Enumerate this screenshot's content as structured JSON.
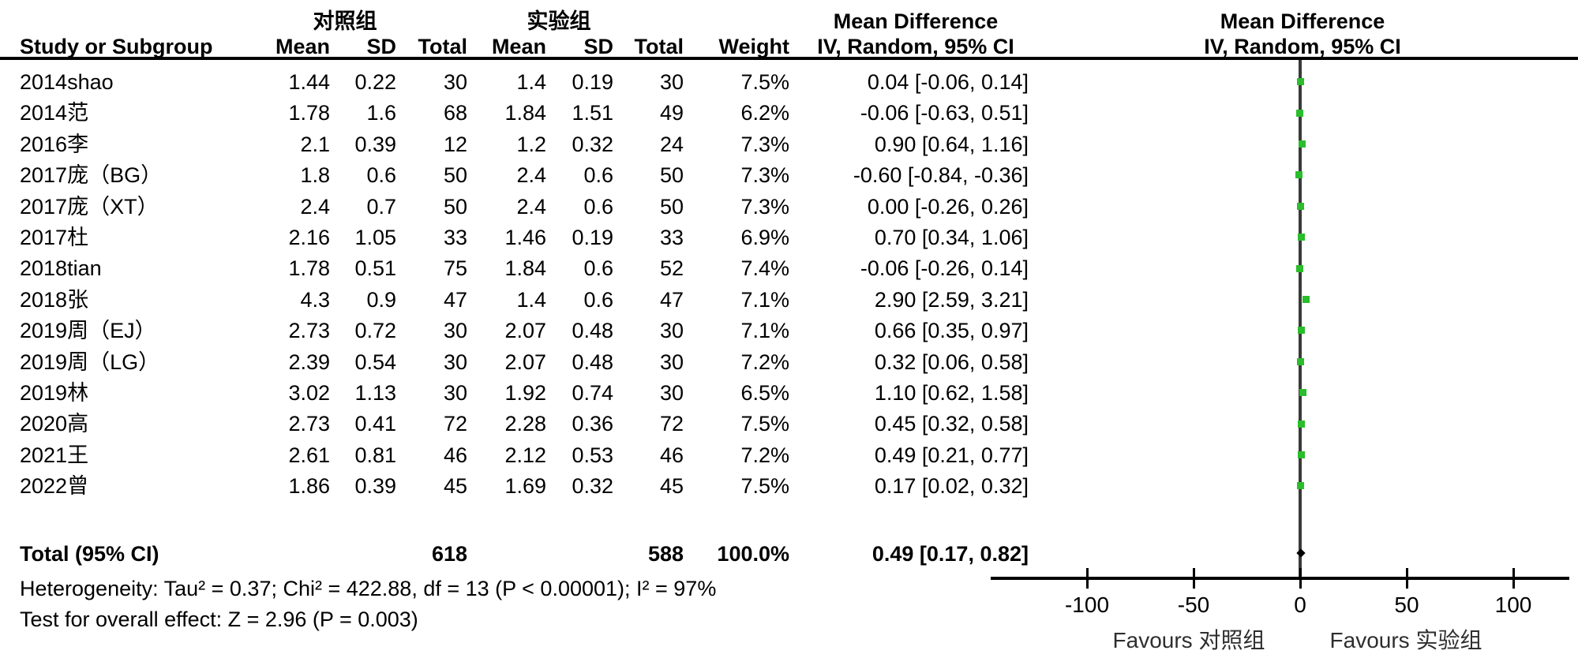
{
  "chart_data": {
    "type": "forest",
    "title_left": "Mean Difference",
    "title_right": "Mean Difference",
    "subtitle_left": "IV, Random, 95% CI",
    "subtitle_right": "IV, Random, 95% CI",
    "header": {
      "study": "Study or Subgroup",
      "group1": "对照组",
      "group2": "实验组",
      "mean": "Mean",
      "sd": "SD",
      "total": "Total",
      "weight": "Weight"
    },
    "studies": [
      {
        "name": "2014shao",
        "c_mean": "1.44",
        "c_sd": "0.22",
        "c_total": "30",
        "e_mean": "1.4",
        "e_sd": "0.19",
        "e_total": "30",
        "weight": "7.5%",
        "md": 0.04,
        "ci_low": -0.06,
        "ci_high": 0.14,
        "ci_text": "0.04 [-0.06, 0.14]"
      },
      {
        "name": "2014范",
        "c_mean": "1.78",
        "c_sd": "1.6",
        "c_total": "68",
        "e_mean": "1.84",
        "e_sd": "1.51",
        "e_total": "49",
        "weight": "6.2%",
        "md": -0.06,
        "ci_low": -0.63,
        "ci_high": 0.51,
        "ci_text": "-0.06 [-0.63, 0.51]"
      },
      {
        "name": "2016李",
        "c_mean": "2.1",
        "c_sd": "0.39",
        "c_total": "12",
        "e_mean": "1.2",
        "e_sd": "0.32",
        "e_total": "24",
        "weight": "7.3%",
        "md": 0.9,
        "ci_low": 0.64,
        "ci_high": 1.16,
        "ci_text": "0.90 [0.64, 1.16]"
      },
      {
        "name": "2017庞（BG）",
        "c_mean": "1.8",
        "c_sd": "0.6",
        "c_total": "50",
        "e_mean": "2.4",
        "e_sd": "0.6",
        "e_total": "50",
        "weight": "7.3%",
        "md": -0.6,
        "ci_low": -0.84,
        "ci_high": -0.36,
        "ci_text": "-0.60 [-0.84, -0.36]"
      },
      {
        "name": "2017庞（XT）",
        "c_mean": "2.4",
        "c_sd": "0.7",
        "c_total": "50",
        "e_mean": "2.4",
        "e_sd": "0.6",
        "e_total": "50",
        "weight": "7.3%",
        "md": 0.0,
        "ci_low": -0.26,
        "ci_high": 0.26,
        "ci_text": "0.00 [-0.26, 0.26]"
      },
      {
        "name": "2017杜",
        "c_mean": "2.16",
        "c_sd": "1.05",
        "c_total": "33",
        "e_mean": "1.46",
        "e_sd": "0.19",
        "e_total": "33",
        "weight": "6.9%",
        "md": 0.7,
        "ci_low": 0.34,
        "ci_high": 1.06,
        "ci_text": "0.70 [0.34, 1.06]"
      },
      {
        "name": "2018tian",
        "c_mean": "1.78",
        "c_sd": "0.51",
        "c_total": "75",
        "e_mean": "1.84",
        "e_sd": "0.6",
        "e_total": "52",
        "weight": "7.4%",
        "md": -0.06,
        "ci_low": -0.26,
        "ci_high": 0.14,
        "ci_text": "-0.06 [-0.26, 0.14]"
      },
      {
        "name": "2018张",
        "c_mean": "4.3",
        "c_sd": "0.9",
        "c_total": "47",
        "e_mean": "1.4",
        "e_sd": "0.6",
        "e_total": "47",
        "weight": "7.1%",
        "md": 2.9,
        "ci_low": 2.59,
        "ci_high": 3.21,
        "ci_text": "2.90 [2.59, 3.21]"
      },
      {
        "name": "2019周（EJ）",
        "c_mean": "2.73",
        "c_sd": "0.72",
        "c_total": "30",
        "e_mean": "2.07",
        "e_sd": "0.48",
        "e_total": "30",
        "weight": "7.1%",
        "md": 0.66,
        "ci_low": 0.35,
        "ci_high": 0.97,
        "ci_text": "0.66 [0.35, 0.97]"
      },
      {
        "name": "2019周（LG）",
        "c_mean": "2.39",
        "c_sd": "0.54",
        "c_total": "30",
        "e_mean": "2.07",
        "e_sd": "0.48",
        "e_total": "30",
        "weight": "7.2%",
        "md": 0.32,
        "ci_low": 0.06,
        "ci_high": 0.58,
        "ci_text": "0.32 [0.06, 0.58]"
      },
      {
        "name": "2019林",
        "c_mean": "3.02",
        "c_sd": "1.13",
        "c_total": "30",
        "e_mean": "1.92",
        "e_sd": "0.74",
        "e_total": "30",
        "weight": "6.5%",
        "md": 1.1,
        "ci_low": 0.62,
        "ci_high": 1.58,
        "ci_text": "1.10 [0.62, 1.58]"
      },
      {
        "name": "2020高",
        "c_mean": "2.73",
        "c_sd": "0.41",
        "c_total": "72",
        "e_mean": "2.28",
        "e_sd": "0.36",
        "e_total": "72",
        "weight": "7.5%",
        "md": 0.45,
        "ci_low": 0.32,
        "ci_high": 0.58,
        "ci_text": "0.45 [0.32, 0.58]"
      },
      {
        "name": "2021王",
        "c_mean": "2.61",
        "c_sd": "0.81",
        "c_total": "46",
        "e_mean": "2.12",
        "e_sd": "0.53",
        "e_total": "46",
        "weight": "7.2%",
        "md": 0.49,
        "ci_low": 0.21,
        "ci_high": 0.77,
        "ci_text": "0.49 [0.21, 0.77]"
      },
      {
        "name": "2022曾",
        "c_mean": "1.86",
        "c_sd": "0.39",
        "c_total": "45",
        "e_mean": "1.69",
        "e_sd": "0.32",
        "e_total": "45",
        "weight": "7.5%",
        "md": 0.17,
        "ci_low": 0.02,
        "ci_high": 0.32,
        "ci_text": "0.17 [0.02, 0.32]"
      }
    ],
    "total": {
      "label": "Total (95% CI)",
      "c_total": "618",
      "e_total": "588",
      "weight": "100.0%",
      "md": 0.49,
      "ci_low": 0.17,
      "ci_high": 0.82,
      "ci_text": "0.49 [0.17, 0.82]"
    },
    "heterogeneity": "Heterogeneity: Tau² = 0.37; Chi² = 422.88, df = 13 (P < 0.00001); I² = 97%",
    "overall_effect": "Test for overall effect: Z = 2.96 (P = 0.003)",
    "axis": {
      "ticks": [
        -100,
        -50,
        0,
        50,
        100
      ],
      "tick_labels": [
        "-100",
        "-50",
        "0",
        "50",
        "100"
      ],
      "min": -145,
      "max": 126,
      "favours_left": "Favours 对照组",
      "favours_right": "Favours 实验组"
    },
    "marker_color": "#2bbd2b",
    "line_color": "#3a3a3a"
  }
}
